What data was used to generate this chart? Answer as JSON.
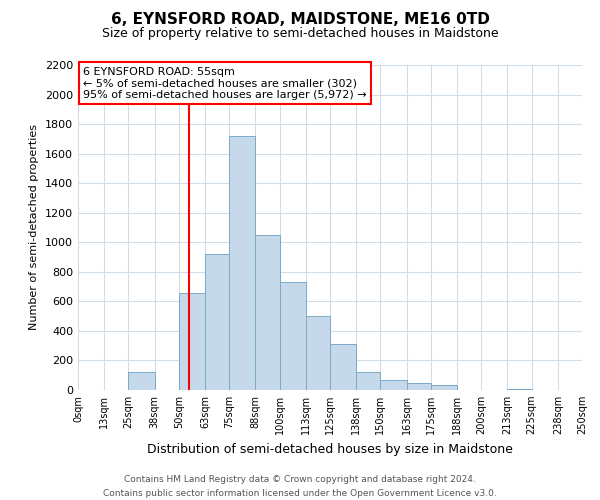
{
  "title": "6, EYNSFORD ROAD, MAIDSTONE, ME16 0TD",
  "subtitle": "Size of property relative to semi-detached houses in Maidstone",
  "bin_edges": [
    0,
    13,
    25,
    38,
    50,
    63,
    75,
    88,
    100,
    113,
    125,
    138,
    150,
    163,
    175,
    188,
    200,
    213,
    225,
    238,
    250
  ],
  "bar_heights": [
    0,
    0,
    120,
    0,
    660,
    920,
    1720,
    1050,
    730,
    500,
    310,
    120,
    70,
    50,
    35,
    0,
    0,
    10,
    0,
    0
  ],
  "bar_color": "#c6d9ea",
  "bar_edge_color": "#7aaac8",
  "property_line_x": 55,
  "property_line_color": "red",
  "ylabel": "Number of semi-detached properties",
  "xlabel": "Distribution of semi-detached houses by size in Maidstone",
  "ylim": [
    0,
    2200
  ],
  "yticks": [
    0,
    200,
    400,
    600,
    800,
    1000,
    1200,
    1400,
    1600,
    1800,
    2000,
    2200
  ],
  "xtick_labels": [
    "0sqm",
    "13sqm",
    "25sqm",
    "38sqm",
    "50sqm",
    "63sqm",
    "75sqm",
    "88sqm",
    "100sqm",
    "113sqm",
    "125sqm",
    "138sqm",
    "150sqm",
    "163sqm",
    "175sqm",
    "188sqm",
    "200sqm",
    "213sqm",
    "225sqm",
    "238sqm",
    "250sqm"
  ],
  "xtick_positions": [
    0,
    13,
    25,
    38,
    50,
    63,
    75,
    88,
    100,
    113,
    125,
    138,
    150,
    163,
    175,
    188,
    200,
    213,
    225,
    238,
    250
  ],
  "annotation_title": "6 EYNSFORD ROAD: 55sqm",
  "annotation_line1": "← 5% of semi-detached houses are smaller (302)",
  "annotation_line2": "95% of semi-detached houses are larger (5,972) →",
  "annotation_box_color": "white",
  "annotation_box_edge_color": "red",
  "footer_line1": "Contains HM Land Registry data © Crown copyright and database right 2024.",
  "footer_line2": "Contains public sector information licensed under the Open Government Licence v3.0.",
  "background_color": "#ffffff",
  "plot_background_color": "#ffffff",
  "grid_color": "#d0dce8",
  "title_fontsize": 11,
  "subtitle_fontsize": 9,
  "ylabel_fontsize": 8,
  "xlabel_fontsize": 9,
  "ytick_fontsize": 8,
  "xtick_fontsize": 7,
  "annotation_fontsize": 8,
  "footer_fontsize": 6.5
}
